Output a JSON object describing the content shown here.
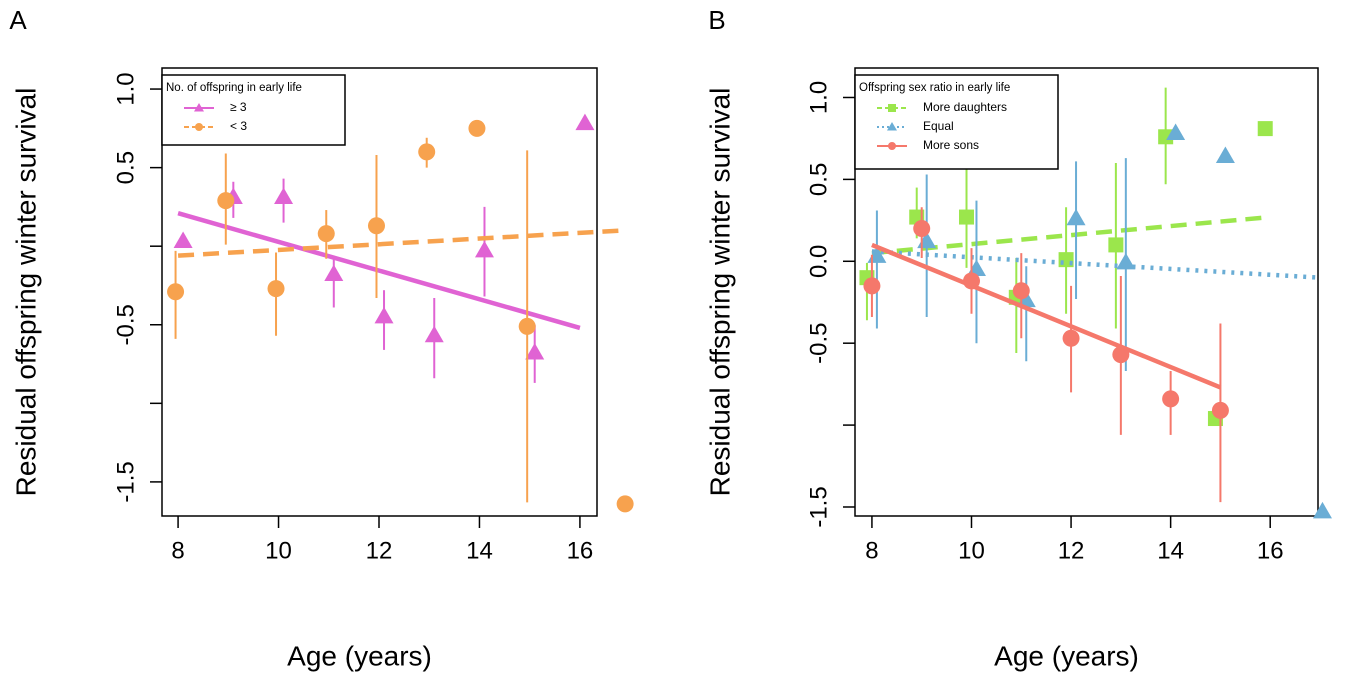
{
  "chart_data": [
    {
      "type": "scatter",
      "panel_label": "A",
      "x_label": "Age (years)",
      "y_label": "Residual offspring winter survival",
      "xlim": [
        7.68,
        16.34
      ],
      "ylim": [
        -1.717,
        1.134
      ],
      "xticks": [
        8,
        10,
        12,
        14,
        16
      ],
      "yticks": [
        {
          "value": 1,
          "label": "1.0"
        },
        0.5,
        {
          "value": 0,
          "label": null
        },
        -0.5,
        {
          "value": -1,
          "label": null
        },
        -1.5
      ],
      "legend_title": "No. of offspring in early life",
      "legend_position": "top-left",
      "series": [
        {
          "name": "≥ 3",
          "color": "#e063d3",
          "marker": "triangle",
          "linestyle": "solid",
          "x": [
            8.1,
            9.1,
            10.1,
            11.1,
            12.1,
            13.1,
            14.1,
            15.1,
            16.1
          ],
          "values": [
            0.03,
            0.31,
            0.31,
            -0.18,
            -0.45,
            -0.57,
            -0.03,
            -0.68,
            0.78
          ],
          "err_low": [
            -0.01,
            0.18,
            0.15,
            -0.39,
            -0.66,
            -0.84,
            -0.32,
            -0.87,
            null
          ],
          "err_high": [
            0.07,
            0.41,
            0.43,
            -0.06,
            -0.28,
            -0.33,
            0.25,
            -0.5,
            null
          ],
          "trend": {
            "x": [
              8,
              16
            ],
            "y": [
              0.21,
              -0.52
            ]
          }
        },
        {
          "name": "< 3",
          "color": "#f7a24e",
          "marker": "circle",
          "linestyle": "dashed",
          "x": [
            7.95,
            8.95,
            9.95,
            10.95,
            11.95,
            12.95,
            13.95,
            14.95,
            16.9
          ],
          "values": [
            -0.29,
            0.29,
            -0.27,
            0.08,
            0.13,
            0.6,
            0.75,
            -0.51,
            -1.64
          ],
          "err_low": [
            -0.59,
            0.01,
            -0.57,
            -0.08,
            -0.33,
            0.5,
            null,
            -1.63,
            null
          ],
          "err_high": [
            -0.03,
            0.59,
            -0.04,
            0.23,
            0.58,
            0.69,
            null,
            0.61,
            null
          ],
          "trend": {
            "x": [
              8,
              16.84
            ],
            "y": [
              -0.06,
              0.1
            ]
          }
        }
      ]
    },
    {
      "type": "scatter",
      "panel_label": "B",
      "x_label": "Age (years)",
      "y_label": "Residual offspring winter survival",
      "xlim": [
        7.66,
        16.96
      ],
      "ylim": [
        -1.555,
        1.18
      ],
      "xticks": [
        8,
        10,
        12,
        14,
        16
      ],
      "yticks": [
        {
          "value": 1,
          "label": "1.0"
        },
        0.5,
        {
          "value": 0,
          "label": "0.0"
        },
        -0.5,
        {
          "value": -1,
          "label": null
        },
        -1.5
      ],
      "legend_title": "Offspring sex ratio in early life",
      "legend_position": "top-left",
      "series": [
        {
          "name": "More daughters",
          "color": "#9be64c",
          "marker": "square",
          "linestyle": "dashed",
          "x": [
            7.9,
            8.9,
            9.9,
            10.9,
            11.9,
            12.9,
            13.9,
            14.9,
            15.9
          ],
          "values": [
            -0.1,
            0.27,
            0.27,
            -0.22,
            0.01,
            0.1,
            0.76,
            -0.96,
            0.81
          ],
          "err_low": [
            -0.36,
            0.14,
            -0.04,
            -0.56,
            -0.32,
            -0.41,
            0.47,
            null,
            null
          ],
          "err_high": [
            -0.01,
            0.45,
            0.56,
            0.02,
            0.33,
            0.6,
            1.06,
            null,
            null
          ],
          "trend": {
            "x": [
              8,
              16
            ],
            "y": [
              0.05,
              0.27
            ]
          }
        },
        {
          "name": "Equal",
          "color": "#6aadd5",
          "marker": "triangle",
          "linestyle": "dotted",
          "x": [
            8.1,
            9.1,
            10.1,
            11.1,
            12.1,
            13.1,
            14.1,
            15.1,
            17.05
          ],
          "values": [
            0.03,
            0.12,
            -0.05,
            -0.24,
            0.26,
            -0.01,
            0.78,
            0.64,
            -1.53
          ],
          "err_low": [
            -0.41,
            -0.34,
            -0.5,
            -0.61,
            -0.23,
            -0.67,
            null,
            null,
            null
          ],
          "err_high": [
            0.31,
            0.53,
            0.37,
            -0.03,
            0.61,
            0.63,
            null,
            null,
            null
          ],
          "trend": {
            "x": [
              8,
              17
            ],
            "y": [
              0.06,
              -0.1
            ]
          }
        },
        {
          "name": "More sons",
          "color": "#f5786b",
          "marker": "circle",
          "linestyle": "solid",
          "x": [
            8,
            9,
            10,
            11,
            12,
            13,
            14,
            15
          ],
          "values": [
            -0.15,
            0.2,
            -0.12,
            -0.18,
            -0.47,
            -0.57,
            -0.84,
            -0.91
          ],
          "err_low": [
            -0.34,
            0.02,
            -0.32,
            -0.47,
            -0.8,
            -1.06,
            -1.06,
            -1.47
          ],
          "err_high": [
            0.04,
            0.33,
            0.08,
            0.05,
            -0.15,
            -0.09,
            -0.67,
            -0.38
          ],
          "trend": {
            "x": [
              8,
              15
            ],
            "y": [
              0.1,
              -0.77
            ]
          }
        }
      ]
    }
  ]
}
